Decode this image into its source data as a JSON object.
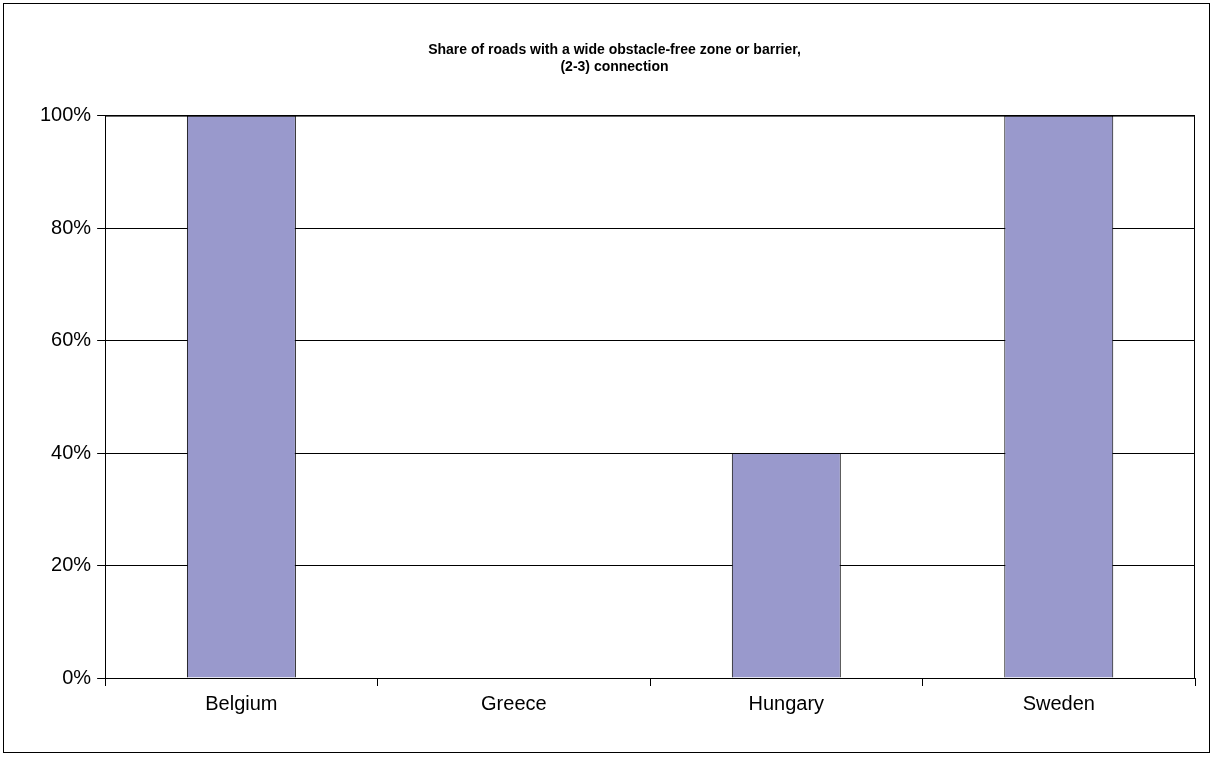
{
  "chart_data": {
    "type": "bar",
    "title": "Share of roads with a wide obstacle-free zone or barrier,\n(2-3) connection",
    "categories": [
      "Belgium",
      "Greece",
      "Hungary",
      "Sweden"
    ],
    "values": [
      100,
      0,
      40,
      100
    ],
    "color": "#9999cc",
    "ylim": [
      0,
      100
    ],
    "yticks": [
      {
        "value": 0,
        "label": "0%"
      },
      {
        "value": 20,
        "label": "20%"
      },
      {
        "value": 40,
        "label": "40%"
      },
      {
        "value": 60,
        "label": "60%"
      },
      {
        "value": 80,
        "label": "80%"
      },
      {
        "value": 100,
        "label": "100%"
      }
    ],
    "grid": "y",
    "legend": false
  }
}
